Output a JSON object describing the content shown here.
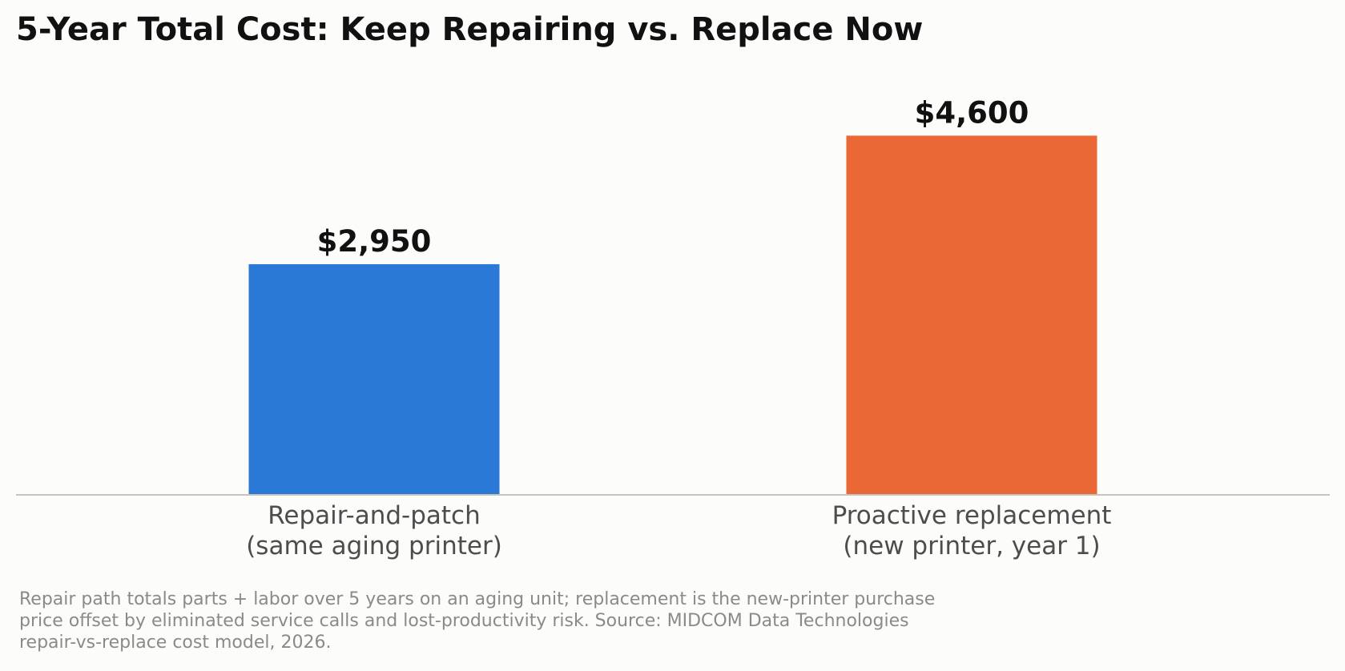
{
  "chart_data": {
    "type": "bar",
    "title": "5-Year Total Cost: Keep Repairing vs. Replace Now",
    "categories": [
      [
        "Repair-and-patch",
        "(same aging printer)"
      ],
      [
        "Proactive replacement",
        "(new printer, year 1)"
      ]
    ],
    "values": [
      2950,
      4600
    ],
    "value_labels": [
      "$2,950",
      "$4,600"
    ],
    "colors": [
      "#2a79d6",
      "#ea6836"
    ],
    "ylim": [
      0,
      5000
    ],
    "grid": false,
    "legend": "none",
    "xlabel": "",
    "ylabel": ""
  },
  "footnote": "Repair path totals parts + labor over 5 years on an aging unit; replacement is the new-printer purchase price offset by eliminated service calls and lost-productivity risk. Source: MIDCOM Data Technologies repair-vs-replace cost model, 2026."
}
